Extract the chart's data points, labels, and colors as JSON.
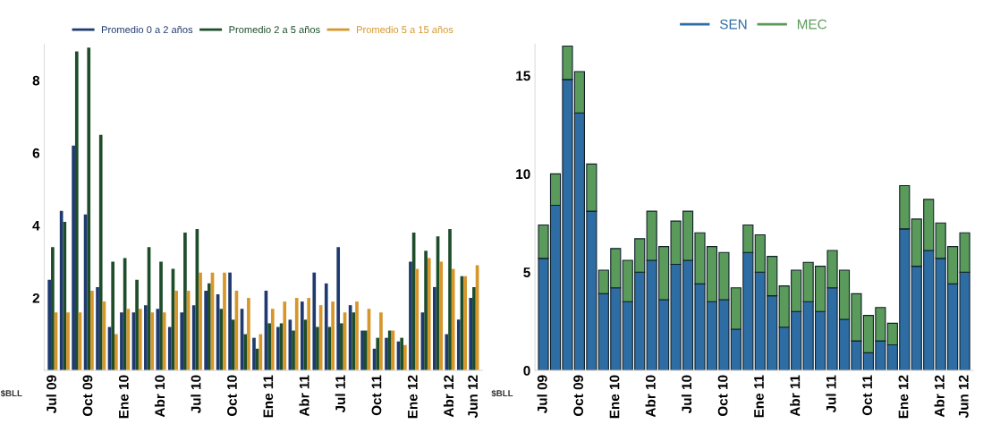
{
  "chart_data": [
    {
      "type": "bar",
      "categories": [
        "Jul 09",
        null,
        null,
        "Oct 09",
        null,
        null,
        "Ene 10",
        null,
        null,
        "Abr 10",
        null,
        null,
        "Jul 10",
        null,
        null,
        "Oct 10",
        null,
        null,
        "Ene 11",
        null,
        null,
        "Abr 11",
        null,
        null,
        "Jul 11",
        null,
        null,
        "Oct 11",
        null,
        null,
        "Ene 12",
        null,
        null,
        "Abr 12",
        null,
        "Jun 12"
      ],
      "series": [
        {
          "name": "Promedio 0 a 2 años",
          "color": "#1f3a6e",
          "values": [
            2.5,
            4.4,
            6.2,
            4.3,
            2.3,
            1.2,
            1.6,
            1.6,
            1.8,
            1.7,
            1.2,
            1.6,
            1.8,
            2.2,
            2.1,
            2.7,
            1.7,
            0.9,
            2.2,
            1.2,
            1.4,
            1.9,
            2.7,
            2.4,
            3.4,
            1.8,
            1.1,
            0.6,
            0.9,
            0.8,
            3.0,
            1.6,
            2.3,
            1.0,
            1.4,
            2.0
          ]
        },
        {
          "name": "Promedio 2 a 5 años",
          "color": "#1e4d2b",
          "values": [
            3.4,
            4.1,
            8.8,
            8.9,
            6.5,
            3.0,
            3.1,
            2.5,
            3.4,
            3.0,
            2.8,
            3.8,
            3.9,
            2.4,
            1.7,
            1.4,
            1.0,
            0.6,
            1.3,
            1.3,
            1.1,
            1.4,
            1.2,
            1.2,
            1.3,
            1.6,
            1.1,
            0.9,
            1.1,
            0.9,
            3.8,
            3.3,
            3.7,
            3.9,
            2.6,
            2.3
          ]
        },
        {
          "name": "Promedio 5 a 15 años",
          "color": "#d6962a",
          "values": [
            1.6,
            1.6,
            1.6,
            2.2,
            1.9,
            1.0,
            1.7,
            1.7,
            1.6,
            1.6,
            2.2,
            2.2,
            2.7,
            2.7,
            2.7,
            2.2,
            2.0,
            1.0,
            1.7,
            1.9,
            2.0,
            2.0,
            1.8,
            1.9,
            1.6,
            1.9,
            1.7,
            1.6,
            1.1,
            0.7,
            2.8,
            3.1,
            3.0,
            2.8,
            2.6,
            2.9
          ]
        }
      ],
      "ylim": [
        0,
        9
      ],
      "yticks": [
        2,
        4,
        6,
        8
      ],
      "legend": "top",
      "grid": false,
      "annotations": [
        "$BLL"
      ]
    },
    {
      "type": "bar",
      "stacked": true,
      "categories": [
        "Jul 09",
        null,
        null,
        "Oct 09",
        null,
        null,
        "Ene 10",
        null,
        null,
        "Abr 10",
        null,
        null,
        "Jul 10",
        null,
        null,
        "Oct 10",
        null,
        null,
        "Ene 11",
        null,
        null,
        "Abr 11",
        null,
        null,
        "Jul 11",
        null,
        null,
        "Oct 11",
        null,
        null,
        "Ene 12",
        null,
        null,
        "Abr 12",
        null,
        "Jun 12"
      ],
      "series": [
        {
          "name": "SEN",
          "color": "#2e6da4",
          "values": [
            5.7,
            8.4,
            14.8,
            13.1,
            8.1,
            3.9,
            4.2,
            3.5,
            5.0,
            5.6,
            3.6,
            5.4,
            5.6,
            4.4,
            3.5,
            3.6,
            2.1,
            6.0,
            5.0,
            3.8,
            2.2,
            3.0,
            3.5,
            3.0,
            4.2,
            2.6,
            1.5,
            0.9,
            1.5,
            1.3,
            7.2,
            5.3,
            6.1,
            5.7,
            4.4,
            5.0
          ]
        },
        {
          "name": "MEC",
          "color": "#5a9a5a",
          "values": [
            1.7,
            1.6,
            1.7,
            2.1,
            2.4,
            1.2,
            2.0,
            2.1,
            1.7,
            2.5,
            2.7,
            2.2,
            2.5,
            2.6,
            2.8,
            2.4,
            2.1,
            1.4,
            1.9,
            2.0,
            2.1,
            2.1,
            2.0,
            2.3,
            1.9,
            2.5,
            2.4,
            1.9,
            1.7,
            1.1,
            2.2,
            2.4,
            2.6,
            1.8,
            1.9,
            2.0
          ]
        }
      ],
      "ylim": [
        0,
        16.6
      ],
      "yticks": [
        0,
        5,
        10,
        15
      ],
      "legend": "top",
      "grid": false,
      "annotations": [
        "$BLL"
      ]
    }
  ]
}
